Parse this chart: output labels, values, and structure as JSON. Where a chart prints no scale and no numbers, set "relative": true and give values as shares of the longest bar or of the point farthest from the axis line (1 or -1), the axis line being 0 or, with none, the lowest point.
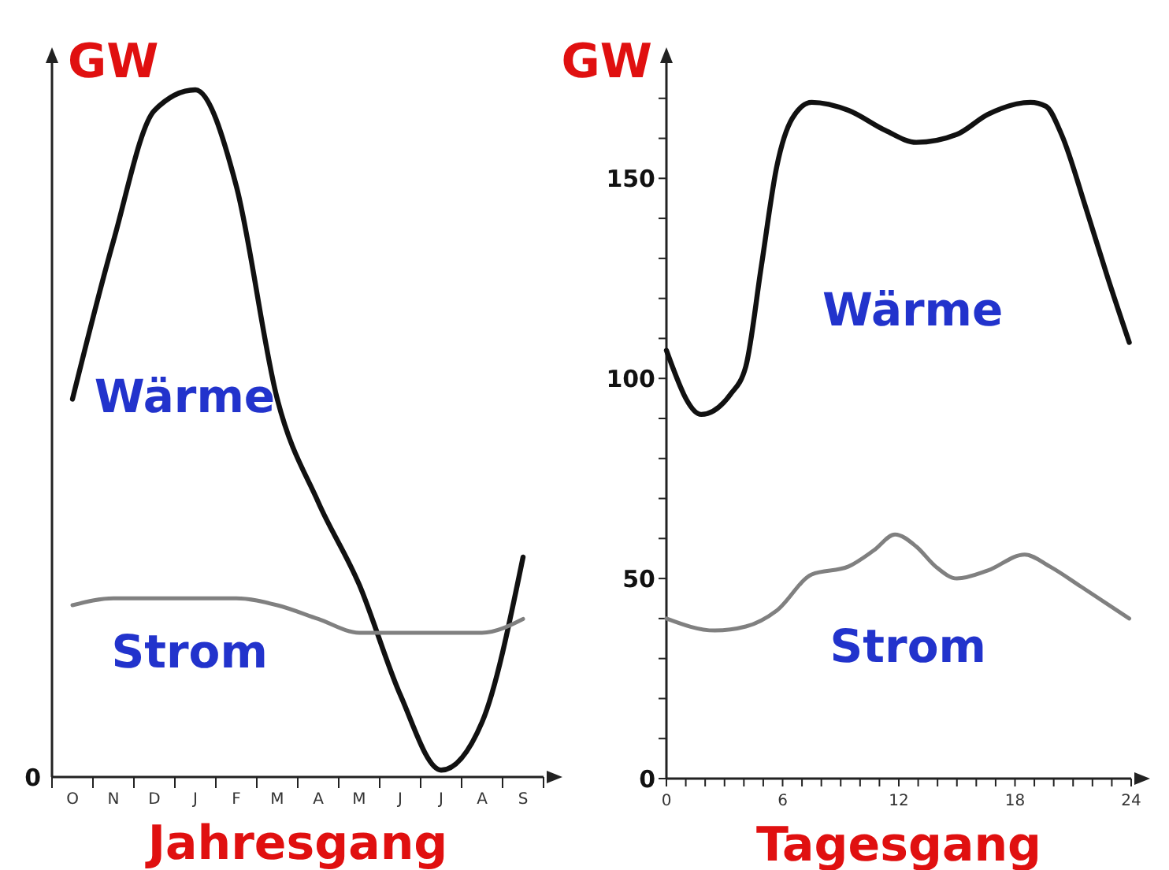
{
  "chart_data": [
    {
      "type": "line",
      "ylabel": "GW",
      "xlabel": "Jahresgang",
      "relative": true,
      "annotations": [
        "0"
      ],
      "categories": [
        "O",
        "N",
        "D",
        "J",
        "F",
        "M",
        "A",
        "M",
        "J",
        "J",
        "A",
        "S"
      ],
      "series": [
        {
          "name": "Wärme",
          "color": "#111111",
          "values": [
            0.55,
            0.78,
            0.97,
            1.0,
            0.86,
            0.55,
            0.4,
            0.28,
            0.12,
            0.01,
            0.08,
            0.32
          ]
        },
        {
          "name": "Strom",
          "color": "#808080",
          "values": [
            0.25,
            0.26,
            0.26,
            0.26,
            0.26,
            0.25,
            0.23,
            0.21,
            0.21,
            0.21,
            0.21,
            0.23
          ]
        }
      ]
    },
    {
      "type": "line",
      "ylabel": "GW",
      "xlabel": "Tagesgang",
      "xlim": [
        0,
        24
      ],
      "ylim": [
        0,
        180
      ],
      "xticks": [
        0,
        {
          "value": 1,
          "label": null
        },
        {
          "value": 2,
          "label": null
        },
        {
          "value": 3,
          "label": null
        },
        {
          "value": 4,
          "label": null
        },
        {
          "value": 5,
          "label": null
        },
        6,
        {
          "value": 7,
          "label": null
        },
        {
          "value": 8,
          "label": null
        },
        {
          "value": 9,
          "label": null
        },
        {
          "value": 10,
          "label": null
        },
        {
          "value": 11,
          "label": null
        },
        12,
        {
          "value": 13,
          "label": null
        },
        {
          "value": 14,
          "label": null
        },
        {
          "value": 15,
          "label": null
        },
        {
          "value": 16,
          "label": null
        },
        {
          "value": 17,
          "label": null
        },
        18,
        {
          "value": 19,
          "label": null
        },
        {
          "value": 20,
          "label": null
        },
        {
          "value": 21,
          "label": null
        },
        {
          "value": 22,
          "label": null
        },
        {
          "value": 23,
          "label": null
        },
        24
      ],
      "yticks": [
        0,
        {
          "value": 10,
          "label": null
        },
        {
          "value": 20,
          "label": null
        },
        {
          "value": 30,
          "label": null
        },
        {
          "value": 40,
          "label": null
        },
        50,
        {
          "value": 60,
          "label": null
        },
        {
          "value": 70,
          "label": null
        },
        {
          "value": 80,
          "label": null
        },
        {
          "value": 90,
          "label": null
        },
        100,
        {
          "value": 110,
          "label": null
        },
        {
          "value": 120,
          "label": null
        },
        {
          "value": 130,
          "label": null
        },
        {
          "value": 140,
          "label": null
        },
        150,
        {
          "value": 160,
          "label": null
        },
        {
          "value": 170,
          "label": null
        }
      ],
      "series": [
        {
          "name": "Wärme",
          "color": "#111111",
          "x": [
            0,
            1.8,
            3.3,
            4.1,
            4.9,
            5.7,
            6.5,
            7.5,
            9.4,
            11.3,
            12.9,
            15,
            16.6,
            18.8,
            19.6,
            20.4,
            21.7,
            22.8,
            23.9
          ],
          "values": [
            107,
            91,
            96,
            103,
            128,
            153,
            165,
            169,
            167,
            162,
            159,
            161,
            166,
            169,
            168,
            161,
            142,
            125,
            109
          ]
        },
        {
          "name": "Strom",
          "color": "#808080",
          "x": [
            0,
            2.5,
            4.1,
            5.7,
            7.5,
            9.4,
            10.7,
            11.8,
            12.9,
            13.9,
            15,
            16.6,
            18.5,
            19.8,
            21.4,
            23.9
          ],
          "values": [
            40,
            37,
            38,
            42,
            51,
            53,
            57,
            61,
            58,
            53,
            50,
            52,
            56,
            53,
            48,
            40
          ]
        }
      ]
    }
  ]
}
